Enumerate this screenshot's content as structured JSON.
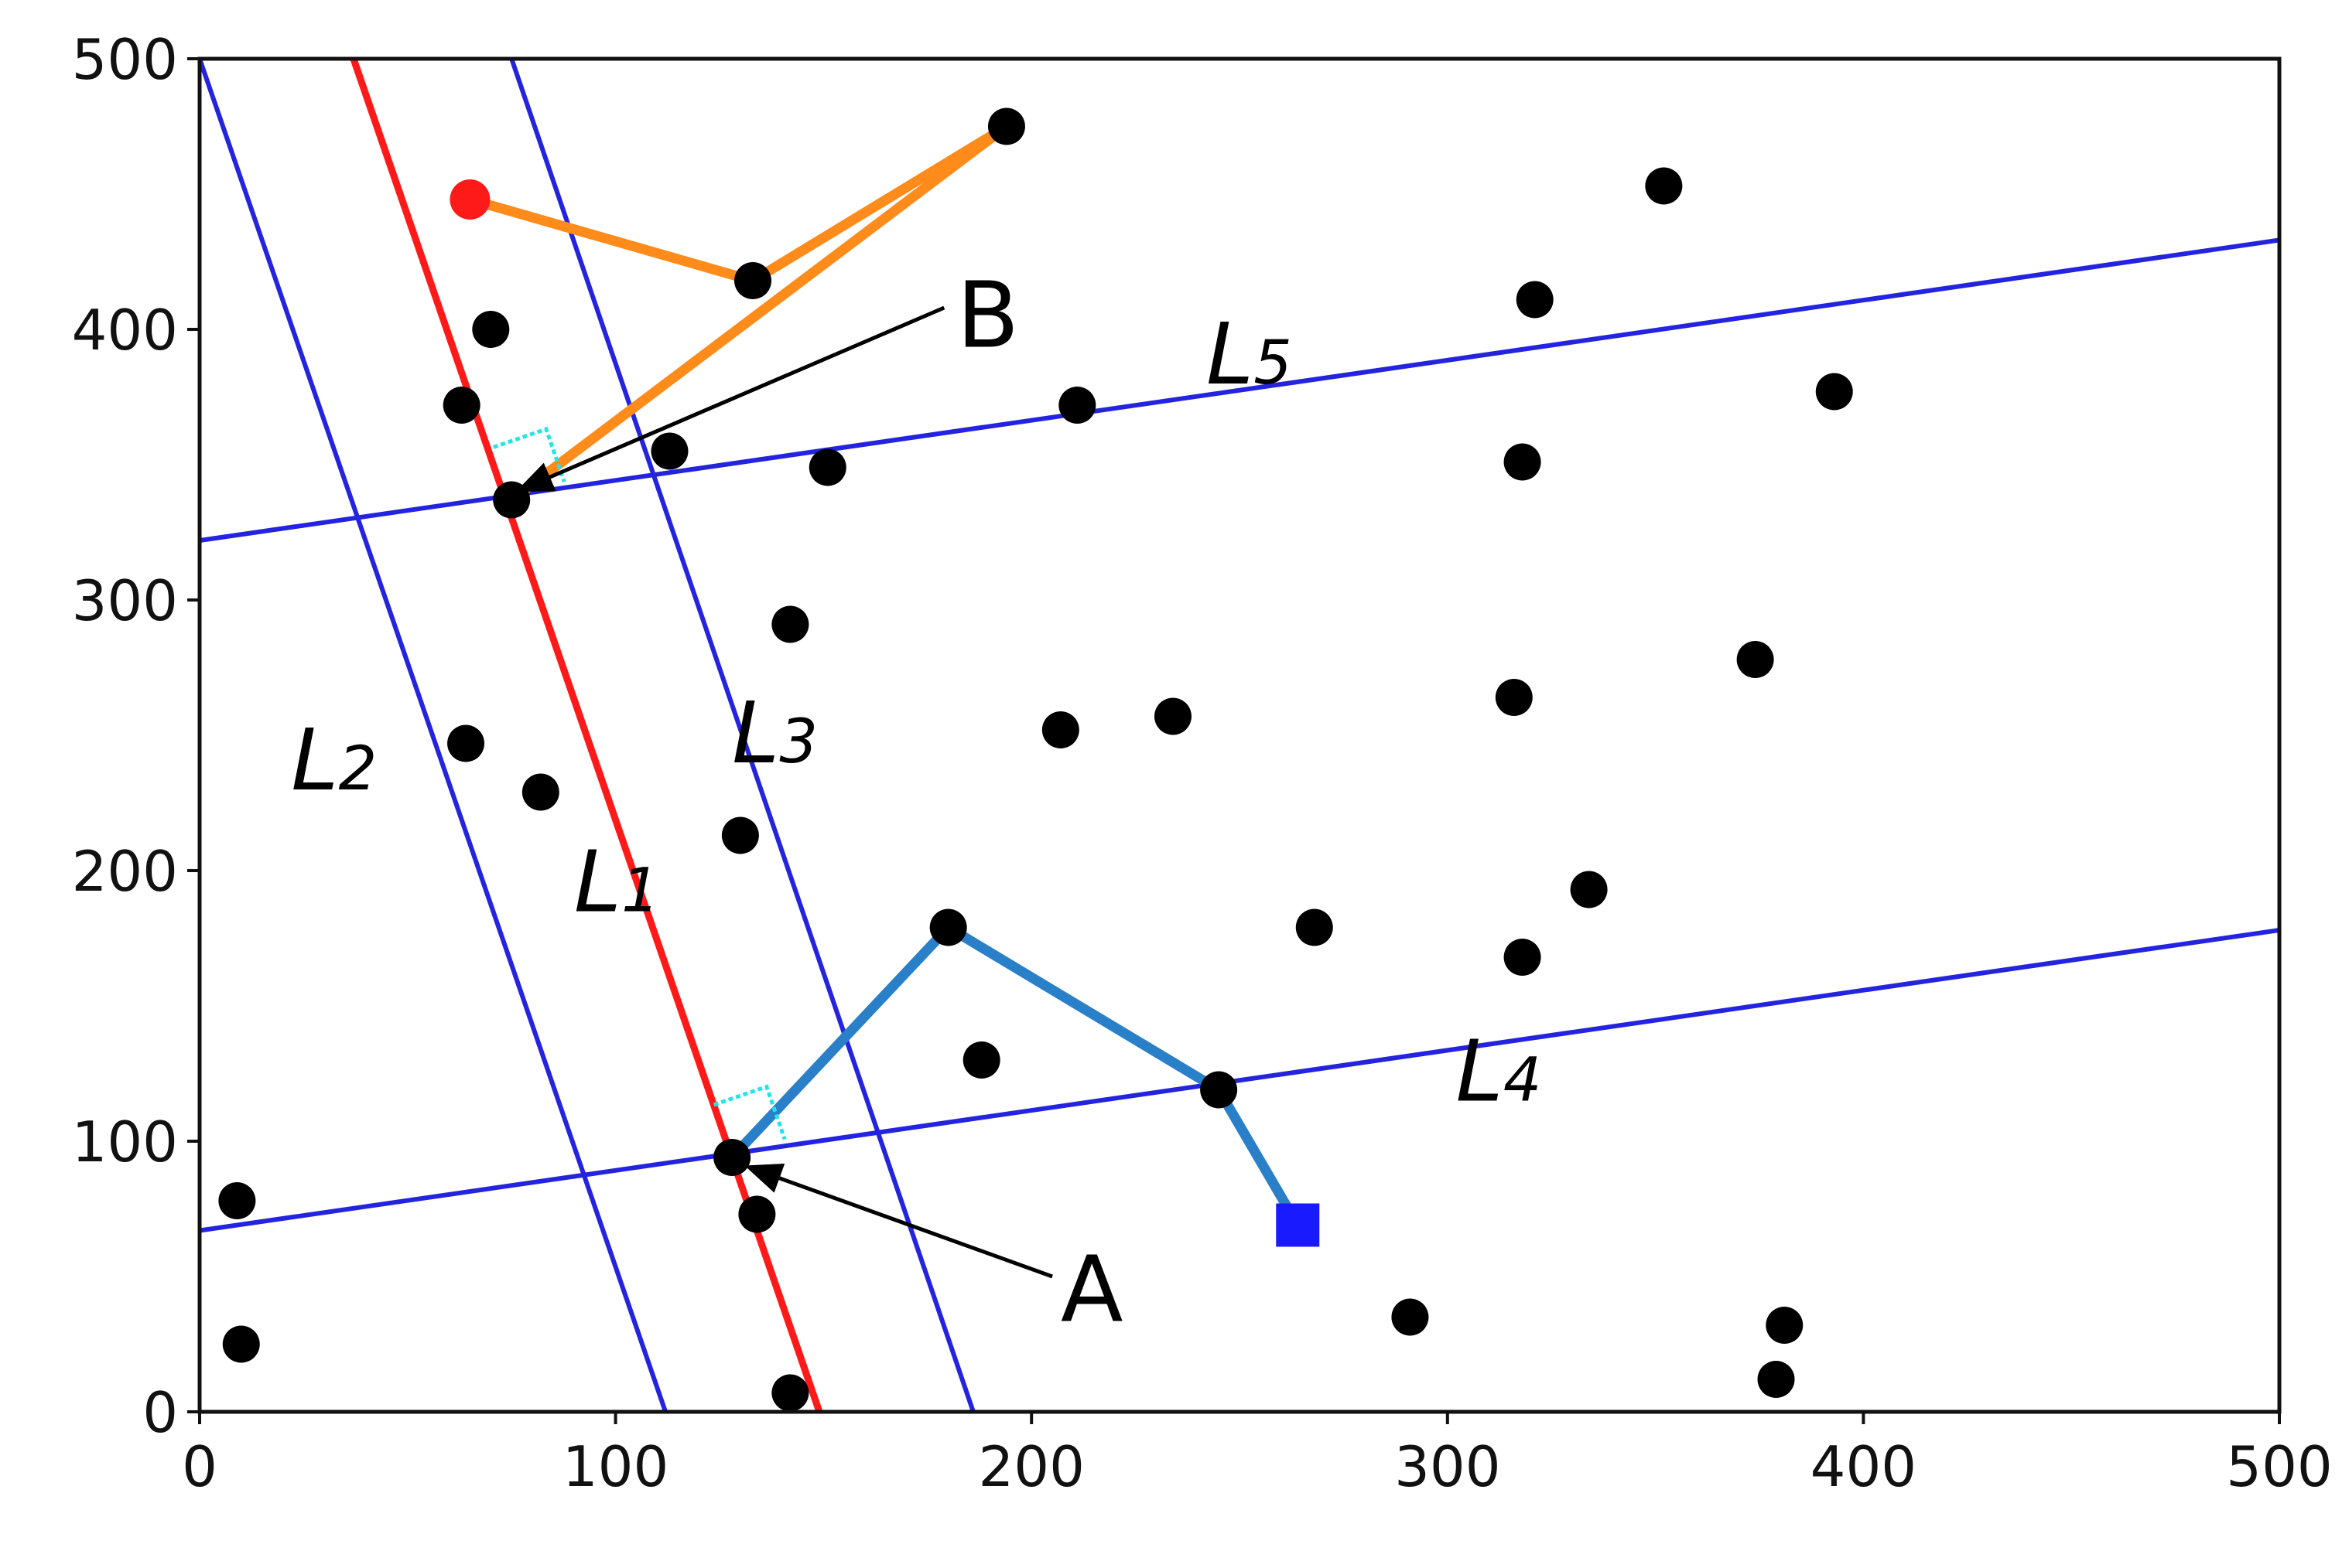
{
  "chart_data": {
    "type": "scatter",
    "xlim": [
      0,
      500
    ],
    "ylim": [
      0,
      500
    ],
    "x_ticks": [
      "0",
      "100",
      "200",
      "300",
      "400",
      "500"
    ],
    "y_ticks": [
      "0",
      "100",
      "200",
      "300",
      "400",
      "500"
    ],
    "grid": false,
    "colors": {
      "points": "#000000",
      "blue_lines": "#2424e0",
      "red_line": "#ff1a1a",
      "orange_path": "#ff8c1a",
      "blue_path": "#2a80c8",
      "perpendicular_marker": "#22e5e5",
      "start_marker": "#ff1a1a",
      "end_marker": "#1a1aff"
    },
    "points": [
      {
        "x": 194,
        "y": 475
      },
      {
        "x": 133,
        "y": 418
      },
      {
        "x": 70,
        "y": 400
      },
      {
        "x": 63,
        "y": 372
      },
      {
        "x": 113,
        "y": 355
      },
      {
        "x": 151,
        "y": 349
      },
      {
        "x": 75,
        "y": 337
      },
      {
        "x": 211,
        "y": 372
      },
      {
        "x": 142,
        "y": 291
      },
      {
        "x": 64,
        "y": 247
      },
      {
        "x": 82,
        "y": 229
      },
      {
        "x": 130,
        "y": 213
      },
      {
        "x": 207,
        "y": 252
      },
      {
        "x": 234,
        "y": 257
      },
      {
        "x": 180,
        "y": 179
      },
      {
        "x": 188,
        "y": 130
      },
      {
        "x": 268,
        "y": 179
      },
      {
        "x": 245,
        "y": 119
      },
      {
        "x": 128,
        "y": 94
      },
      {
        "x": 134,
        "y": 73
      },
      {
        "x": 142,
        "y": 7
      },
      {
        "x": 9,
        "y": 78
      },
      {
        "x": 10,
        "y": 25
      },
      {
        "x": 291,
        "y": 35
      },
      {
        "x": 352,
        "y": 453
      },
      {
        "x": 321,
        "y": 411
      },
      {
        "x": 393,
        "y": 377
      },
      {
        "x": 318,
        "y": 351
      },
      {
        "x": 374,
        "y": 278
      },
      {
        "x": 316,
        "y": 264
      },
      {
        "x": 334,
        "y": 193
      },
      {
        "x": 318,
        "y": 168
      },
      {
        "x": 381,
        "y": 32
      },
      {
        "x": 379,
        "y": 12
      }
    ],
    "lines": [
      {
        "label": "L",
        "sub": "1",
        "color_key": "red_line",
        "from": [
          37,
          500
        ],
        "to": [
          149,
          0
        ],
        "label_at": [
          90,
          185
        ]
      },
      {
        "label": "L",
        "sub": "2",
        "color_key": "blue_lines",
        "from": [
          0,
          500
        ],
        "to": [
          112,
          0
        ],
        "label_at": [
          22,
          230
        ]
      },
      {
        "label": "L",
        "sub": "3",
        "color_key": "blue_lines",
        "from": [
          75,
          500
        ],
        "to": [
          186,
          0
        ],
        "label_at": [
          128,
          240
        ]
      },
      {
        "label": "L",
        "sub": "4",
        "color_key": "blue_lines",
        "from": [
          0,
          67
        ],
        "to": [
          500,
          178
        ],
        "label_at": [
          302,
          115
        ]
      },
      {
        "label": "L",
        "sub": "5",
        "color_key": "blue_lines",
        "from": [
          0,
          322
        ],
        "to": [
          500,
          433
        ],
        "label_at": [
          242,
          380
        ]
      }
    ],
    "paths": [
      {
        "name": "orange",
        "color_key": "orange_path",
        "points": [
          [
            65,
            448
          ],
          [
            133,
            418
          ],
          [
            194,
            475
          ],
          [
            75,
            337
          ]
        ]
      },
      {
        "name": "blue",
        "color_key": "blue_path",
        "points": [
          [
            264,
            69
          ],
          [
            245,
            119
          ],
          [
            180,
            179
          ],
          [
            128,
            94
          ]
        ]
      }
    ],
    "start_marker": {
      "x": 65,
      "y": 448
    },
    "end_marker": {
      "x": 264,
      "y": 69
    },
    "perpendicular_markers": [
      {
        "at": [
          75,
          337
        ],
        "along_line": "L1"
      },
      {
        "at": [
          128,
          94
        ],
        "along_line": "L1"
      }
    ],
    "annotations": [
      {
        "text": "B",
        "text_at": [
          182,
          405
        ],
        "arrow_from": [
          179,
          408
        ],
        "arrow_to": [
          76,
          340
        ]
      },
      {
        "text": "A",
        "text_at": [
          207,
          45
        ],
        "arrow_from": [
          205,
          50
        ],
        "arrow_to": [
          131,
          91
        ]
      }
    ]
  }
}
